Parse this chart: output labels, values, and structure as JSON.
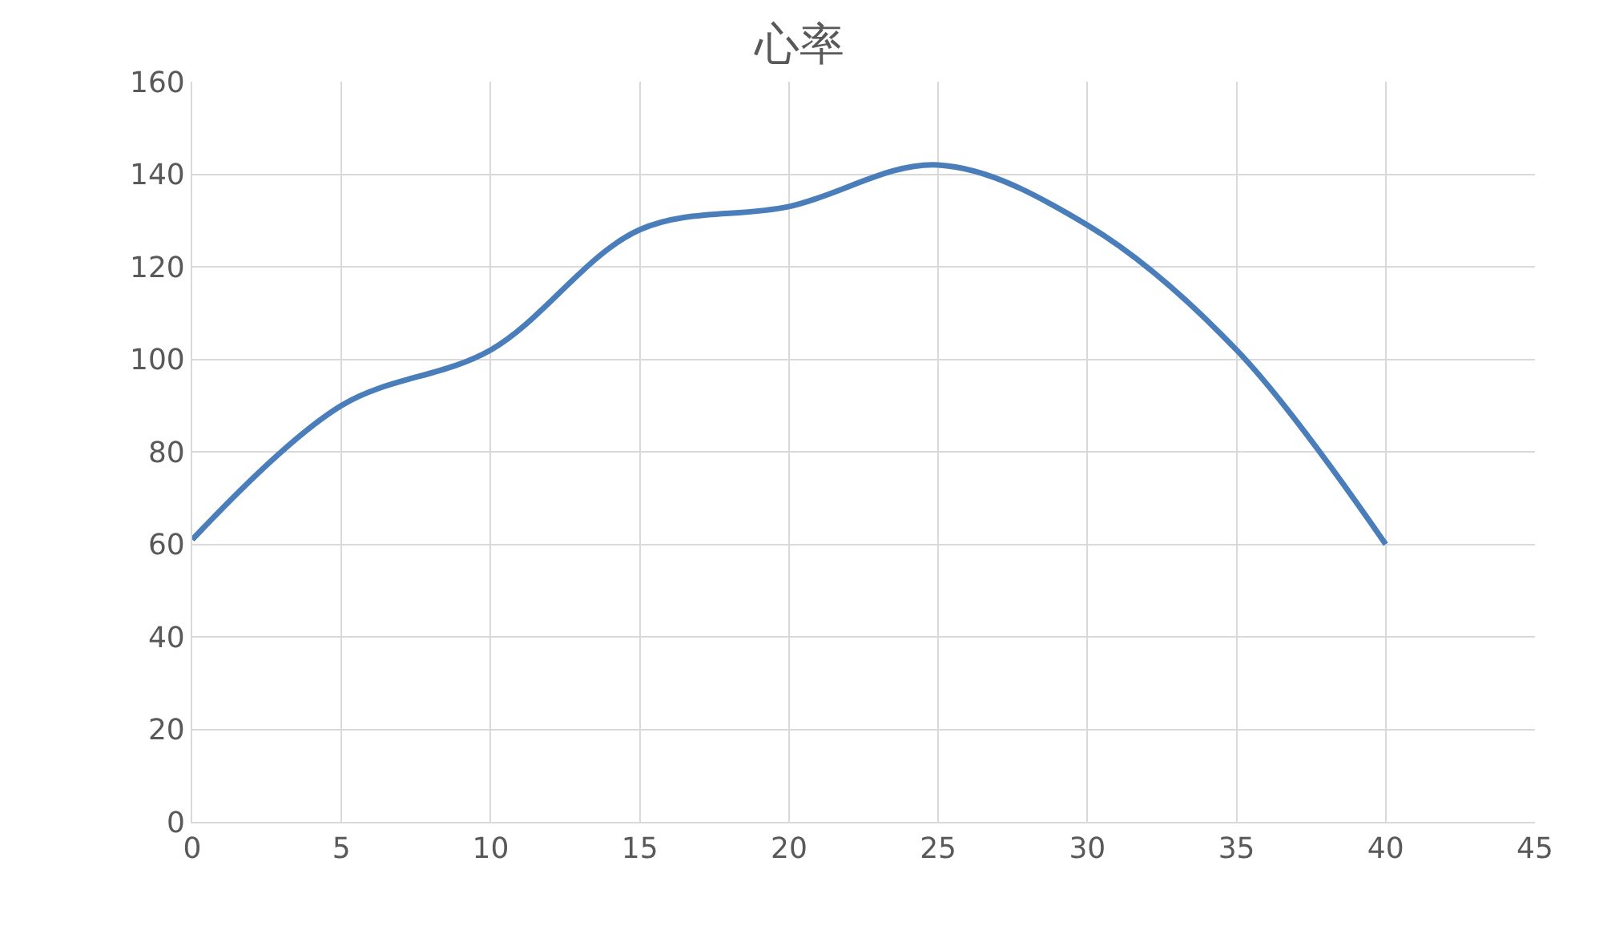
{
  "chart_data": {
    "type": "line",
    "title": "心率",
    "x": [
      0,
      5,
      10,
      15,
      20,
      25,
      30,
      35,
      40
    ],
    "series": [
      {
        "color": "#4a7ebb",
        "values": [
          61,
          90,
          102,
          128,
          133,
          142,
          129,
          102,
          60
        ]
      }
    ],
    "xlim": [
      0,
      45
    ],
    "xticks": [
      0,
      5,
      10,
      15,
      20,
      25,
      30,
      35,
      40,
      45
    ],
    "ylim": [
      0,
      160
    ],
    "yticks": [
      0,
      20,
      40,
      60,
      80,
      100,
      120,
      140,
      160
    ],
    "grid": true,
    "legend": false,
    "marker": "none"
  }
}
